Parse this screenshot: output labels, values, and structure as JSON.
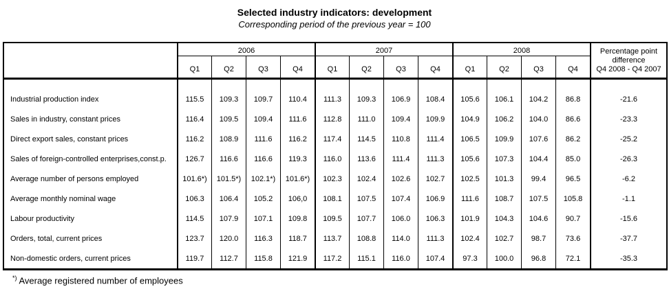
{
  "title": "Selected industry indicators: development",
  "subtitle": "Corresponding period of the previous year = 100",
  "table": {
    "year_groups": [
      "2006",
      "2007",
      "2008"
    ],
    "quarter_labels": [
      "Q1",
      "Q2",
      "Q3",
      "Q4",
      "Q1",
      "Q2",
      "Q3",
      "Q4",
      "Q1",
      "Q2",
      "Q3",
      "Q4"
    ],
    "diff_header_lines": [
      "Percentage point",
      "difference",
      "Q4 2008 - Q4 2007"
    ],
    "rows": [
      {
        "label": "Industrial production index",
        "values": [
          "115.5",
          "109.3",
          "109.7",
          "110.4",
          "111.3",
          "109.3",
          "106.9",
          "108.4",
          "105.6",
          "106.1",
          "104.2",
          "86.8"
        ],
        "diff": "-21.6"
      },
      {
        "label": "Sales in industry, constant prices",
        "values": [
          "116.4",
          "109.5",
          "109.4",
          "111.6",
          "112.8",
          "111.0",
          "109.4",
          "109.9",
          "104.9",
          "106.2",
          "104.0",
          "86.6"
        ],
        "diff": "-23.3"
      },
      {
        "label": "Direct export sales, constant prices",
        "values": [
          "116.2",
          "108.9",
          "111.6",
          "116.2",
          "117.4",
          "114.5",
          "110.8",
          "111.4",
          "106.5",
          "109.9",
          "107.6",
          "86.2"
        ],
        "diff": "-25.2"
      },
      {
        "label": "Sales of foreign-controlled enterprises,const.p.",
        "values": [
          "126.7",
          "116.6",
          "116.6",
          "119.3",
          "116.0",
          "113.6",
          "111.4",
          "111.3",
          "105.6",
          "107.3",
          "104.4",
          "85.0"
        ],
        "diff": "-26.3"
      },
      {
        "label": "Average number of persons employed",
        "values": [
          "101.6*)",
          "101.5*)",
          "102.1*)",
          "101.6*)",
          "102.3",
          "102.4",
          "102.6",
          "102.7",
          "102.5",
          "101.3",
          "99.4",
          "96.5"
        ],
        "diff": "-6.2"
      },
      {
        "label": "Average monthly nominal wage",
        "values": [
          "106.3",
          "106.4",
          "105.2",
          "106,0",
          "108.1",
          "107.5",
          "107.4",
          "106.9",
          "111.6",
          "108.7",
          "107.5",
          "105.8"
        ],
        "diff": "-1.1"
      },
      {
        "label": "Labour productivity",
        "values": [
          "114.5",
          "107.9",
          "107.1",
          "109.8",
          "109.5",
          "107.7",
          "106.0",
          "106.3",
          "101.9",
          "104.3",
          "104.6",
          "90.7"
        ],
        "diff": "-15.6"
      },
      {
        "label": "Orders, total, current prices",
        "values": [
          "123.7",
          "120.0",
          "116.3",
          "118.7",
          "113.7",
          "108.8",
          "114.0",
          "111.3",
          "102.4",
          "102.7",
          "98.7",
          "73.6"
        ],
        "diff": "-37.7"
      },
      {
        "label": "Non-domestic orders, current prices",
        "values": [
          "119.7",
          "112.7",
          "115.8",
          "121.9",
          "117.2",
          "115.1",
          "116.0",
          "107.4",
          "97.3",
          "100.0",
          "96.8",
          "72.1"
        ],
        "diff": "-35.3"
      }
    ]
  },
  "footnote": {
    "marker": "*)",
    "text": "Average registered number of employees"
  }
}
